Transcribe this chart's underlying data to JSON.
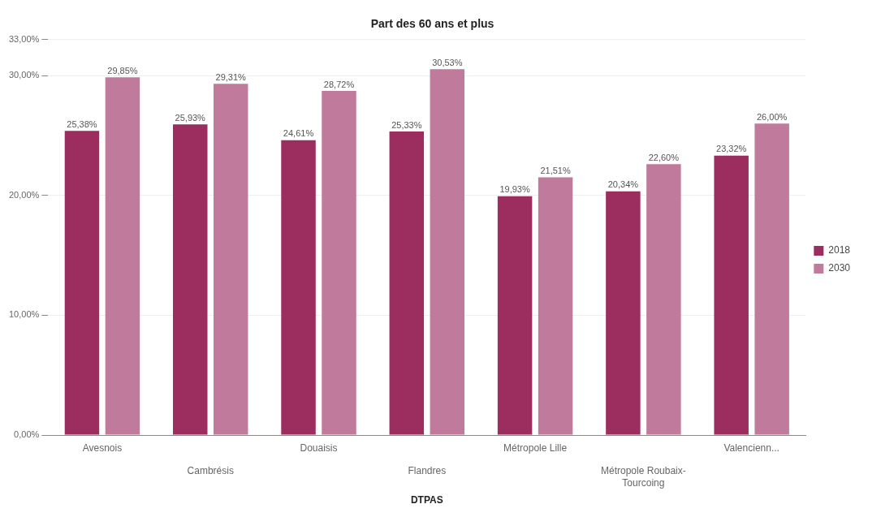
{
  "chart_data": {
    "type": "bar",
    "title": "Part des 60 ans et plus",
    "xlabel": "DTPAS",
    "categories": [
      "Avesnois",
      "Cambrésis",
      "Douaisis",
      "Flandres",
      "Métropole Lille",
      "Métropole Roubaix-Tourcoing",
      "Valencienn..."
    ],
    "series": [
      {
        "name": "2018",
        "color": "#9b2d5f",
        "values": [
          25.38,
          25.93,
          24.61,
          25.33,
          19.93,
          20.34,
          23.32
        ],
        "value_labels": [
          "25,38%",
          "25,93%",
          "24,61%",
          "25,33%",
          "19,93%",
          "20,34%",
          "23,32%"
        ]
      },
      {
        "name": "2030",
        "color": "#c07b9c",
        "values": [
          29.85,
          29.31,
          28.72,
          30.53,
          21.51,
          22.6,
          26.0
        ],
        "value_labels": [
          "29,85%",
          "29,31%",
          "28,72%",
          "30,53%",
          "21,51%",
          "22,60%",
          "26,00%"
        ]
      }
    ],
    "ylim": [
      0,
      33
    ],
    "yticks": [
      {
        "value": 0,
        "label": "0,00%"
      },
      {
        "value": 10,
        "label": "10,00%"
      },
      {
        "value": 20,
        "label": "20,00%"
      },
      {
        "value": 30,
        "label": "30,00%"
      },
      {
        "value": 33,
        "label": "33,00%"
      }
    ],
    "grid": "y",
    "legend": "right"
  }
}
